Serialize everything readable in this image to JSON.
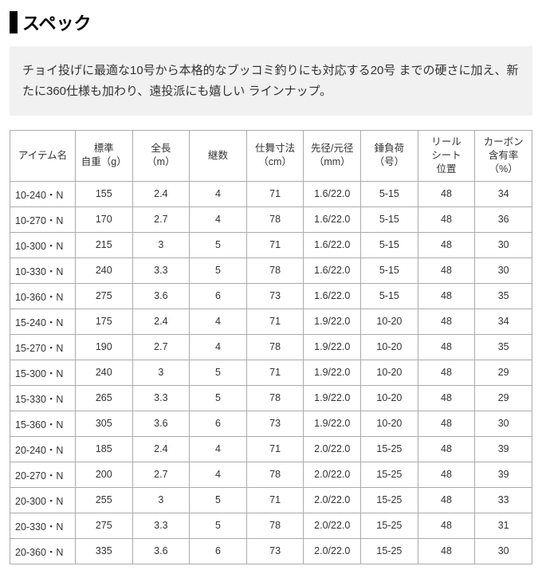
{
  "heading": "スペック",
  "description": "チョイ投げに最適な10号から本格的なブッコミ釣りにも対応する20号 までの硬さに加え、新たに360仕様も加わり、遠投派にも嬉しい ラインナップ。",
  "table": {
    "columns": [
      "アイテム名",
      "標準\n自重（g）",
      "全長\n（m）",
      "継数",
      "仕舞寸法\n（cm）",
      "先径/元径\n（mm）",
      "錘負荷\n（号）",
      "リール\nシート\n位置",
      "カーボン\n含有率\n（%）"
    ],
    "rows": [
      [
        "10-240・N",
        "155",
        "2.4",
        "4",
        "71",
        "1.6/22.0",
        "5-15",
        "48",
        "34"
      ],
      [
        "10-270・N",
        "170",
        "2.7",
        "4",
        "78",
        "1.6/22.0",
        "5-15",
        "48",
        "36"
      ],
      [
        "10-300・N",
        "215",
        "3",
        "5",
        "71",
        "1.6/22.0",
        "5-15",
        "48",
        "30"
      ],
      [
        "10-330・N",
        "240",
        "3.3",
        "5",
        "78",
        "1.6/22.0",
        "5-15",
        "48",
        "30"
      ],
      [
        "10-360・N",
        "275",
        "3.6",
        "6",
        "73",
        "1.6/22.0",
        "5-15",
        "48",
        "35"
      ],
      [
        "15-240・N",
        "175",
        "2.4",
        "4",
        "71",
        "1.9/22.0",
        "10-20",
        "48",
        "34"
      ],
      [
        "15-270・N",
        "190",
        "2.7",
        "4",
        "78",
        "1.9/22.0",
        "10-20",
        "48",
        "35"
      ],
      [
        "15-300・N",
        "240",
        "3",
        "5",
        "71",
        "1.9/22.0",
        "10-20",
        "48",
        "29"
      ],
      [
        "15-330・N",
        "265",
        "3.3",
        "5",
        "78",
        "1.9/22.0",
        "10-20",
        "48",
        "29"
      ],
      [
        "15-360・N",
        "305",
        "3.6",
        "6",
        "73",
        "1.9/22.0",
        "10-20",
        "48",
        "30"
      ],
      [
        "20-240・N",
        "185",
        "2.4",
        "4",
        "71",
        "2.0/22.0",
        "15-25",
        "48",
        "39"
      ],
      [
        "20-270・N",
        "200",
        "2.7",
        "4",
        "78",
        "2.0/22.0",
        "15-25",
        "48",
        "39"
      ],
      [
        "20-300・N",
        "255",
        "3",
        "5",
        "71",
        "2.0/22.0",
        "15-25",
        "48",
        "33"
      ],
      [
        "20-330・N",
        "275",
        "3.3",
        "5",
        "78",
        "2.0/22.0",
        "15-25",
        "48",
        "31"
      ],
      [
        "20-360・N",
        "335",
        "3.6",
        "6",
        "73",
        "2.0/22.0",
        "15-25",
        "48",
        "30"
      ]
    ],
    "border_color": "#ababab",
    "header_bg": "#ffffff",
    "cell_font_size": 12.5,
    "text_color": "#333333"
  },
  "colors": {
    "background": "#ffffff",
    "desc_bg": "#f1f1f1",
    "heading_bar": "#000000"
  }
}
